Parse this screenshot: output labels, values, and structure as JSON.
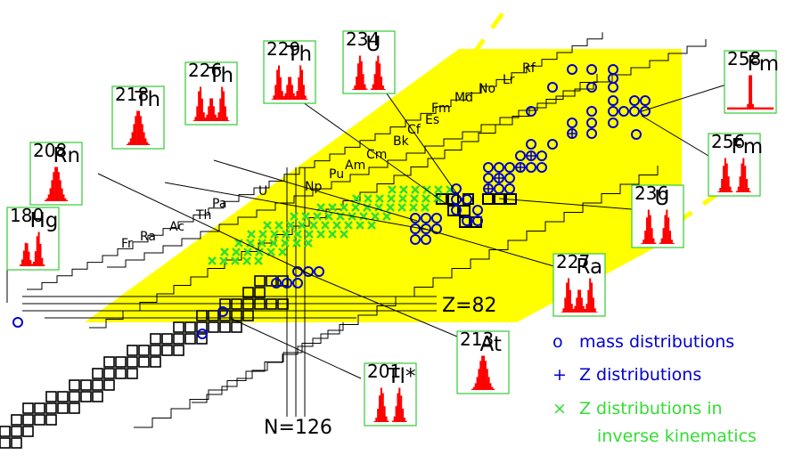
{
  "colors": {
    "band": "#ffff00",
    "mass": "#0000cc",
    "zdist": "#0000cc",
    "inverse": "#33dd33",
    "hist_fill": "#ff0000",
    "box_border": "#33cc33",
    "line": "#000000"
  },
  "element_labels": [
    "Fr",
    "Ra",
    "Ac",
    "Th",
    "Pa",
    "U",
    "Np",
    "Pu",
    "Am",
    "Cm",
    "Bk",
    "Cf",
    "Es",
    "Fm",
    "Md",
    "No",
    "Lr",
    "Rf"
  ],
  "z_label": "Z=82",
  "n_label": "N=126",
  "legend": {
    "mass_symbol": "o",
    "mass_text": "mass distributions",
    "z_symbol": "+",
    "z_text": "Z distributions",
    "inverse_symbol": "×",
    "inverse_text_1": "Z distributions in",
    "inverse_text_2": "inverse kinematics"
  },
  "nuclides": [
    {
      "mass": "180",
      "element": "Hg",
      "shape": "asym"
    },
    {
      "mass": "208",
      "element": "Rn",
      "shape": "single"
    },
    {
      "mass": "218",
      "element": "Th",
      "shape": "single"
    },
    {
      "mass": "226",
      "element": "Th",
      "shape": "triple"
    },
    {
      "mass": "229",
      "element": "Th",
      "shape": "triple"
    },
    {
      "mass": "234",
      "element": "U",
      "shape": "double"
    },
    {
      "mass": "258",
      "element": "Fm",
      "shape": "spike"
    },
    {
      "mass": "256",
      "element": "Fm",
      "shape": "double"
    },
    {
      "mass": "236",
      "element": "U",
      "shape": "double"
    },
    {
      "mass": "227",
      "element": "Ra",
      "shape": "triple"
    },
    {
      "mass": "213",
      "element": "At",
      "shape": "single"
    },
    {
      "mass": "201",
      "element": "Tl*",
      "shape": "double"
    }
  ]
}
